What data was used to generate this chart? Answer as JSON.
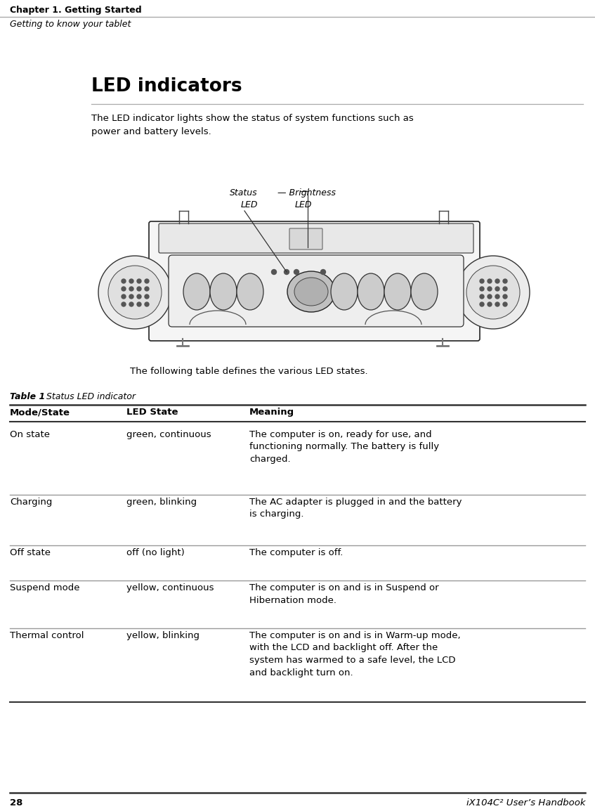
{
  "chapter_title": "Chapter 1. Getting Started",
  "section_title": "Getting to know your tablet",
  "page_number": "28",
  "handbook_title": "iX104C² User’s Handbook",
  "led_title": "LED indicators",
  "led_description": "The LED indicator lights show the status of system functions such as\npower and battery levels.",
  "following_text": "The following table defines the various LED states.",
  "table_caption_bold": "Table 1",
  "table_caption_italic": "  Status LED indicator",
  "table_headers": [
    "Mode/State",
    "LED State",
    "Meaning"
  ],
  "table_rows": [
    [
      "On state",
      "green, continuous",
      "The computer is on, ready for use, and\nfunctioning normally. The battery is fully\ncharged."
    ],
    [
      "Charging",
      "green, blinking",
      "The AC adapter is plugged in and the battery\nis charging."
    ],
    [
      "Off state",
      "off (no light)",
      "The computer is off."
    ],
    [
      "Suspend mode",
      "yellow, continuous",
      "The computer is on and is in Suspend or\nHibernation mode."
    ],
    [
      "Thermal control",
      "yellow, blinking",
      "The computer is on and is in Warm-up mode,\nwith the LCD and backlight off. After the\nsystem has warmed to a safe level, the LCD\nand backlight turn on."
    ]
  ],
  "bg_color": "#ffffff",
  "text_color": "#000000",
  "line_color": "#999999",
  "header_line_color": "#000000",
  "thick_line_color": "#333333"
}
